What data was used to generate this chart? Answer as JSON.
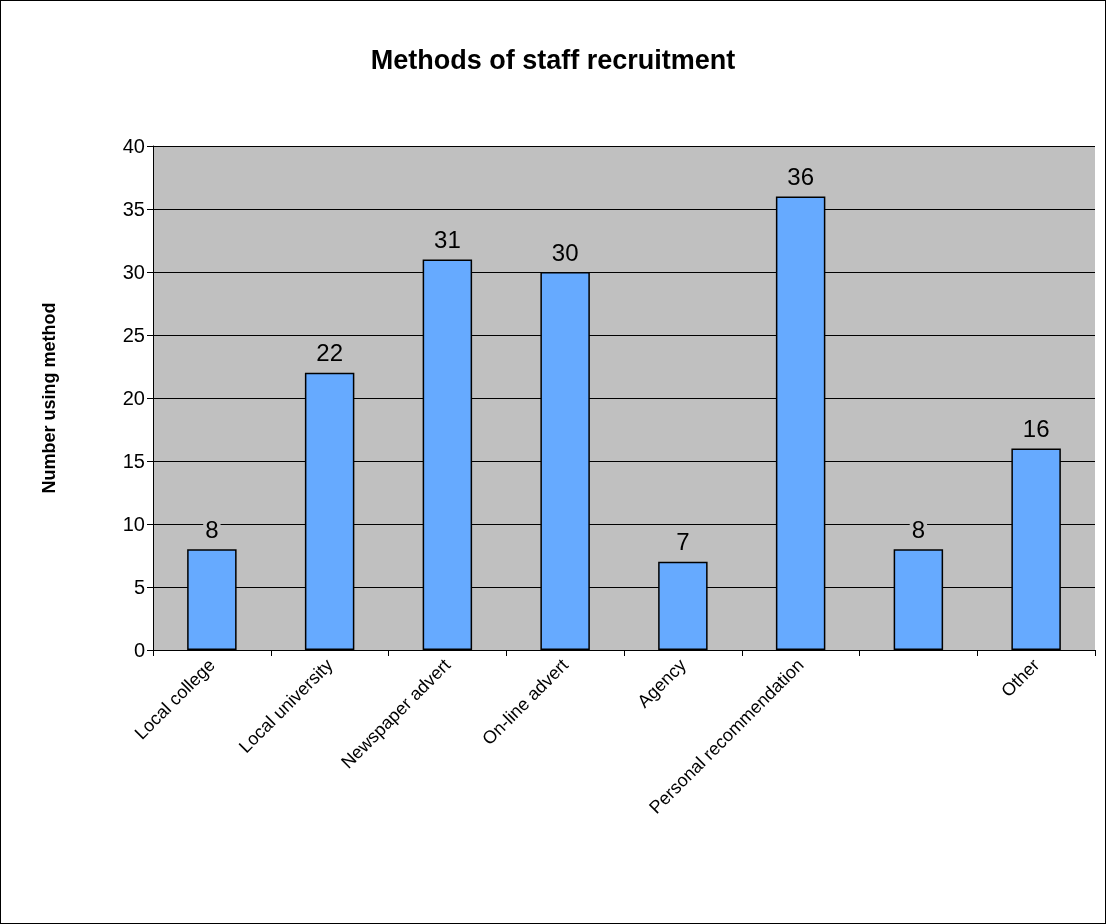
{
  "chart_data": {
    "type": "bar",
    "title": "Methods of staff recruitment",
    "ylabel": "Number using method",
    "categories": [
      "Local college",
      "Local university",
      "Newspaper advert",
      "On-line advert",
      "Agency",
      "Personal recommendation",
      null,
      "Other"
    ],
    "values": [
      8,
      22,
      31,
      30,
      7,
      36,
      8,
      16
    ],
    "color": "#66aaff",
    "ylim": [
      0,
      40
    ],
    "yticks": [
      0,
      5,
      10,
      15,
      20,
      25,
      30,
      35,
      40
    ],
    "grid": "y",
    "data_labels": true
  }
}
